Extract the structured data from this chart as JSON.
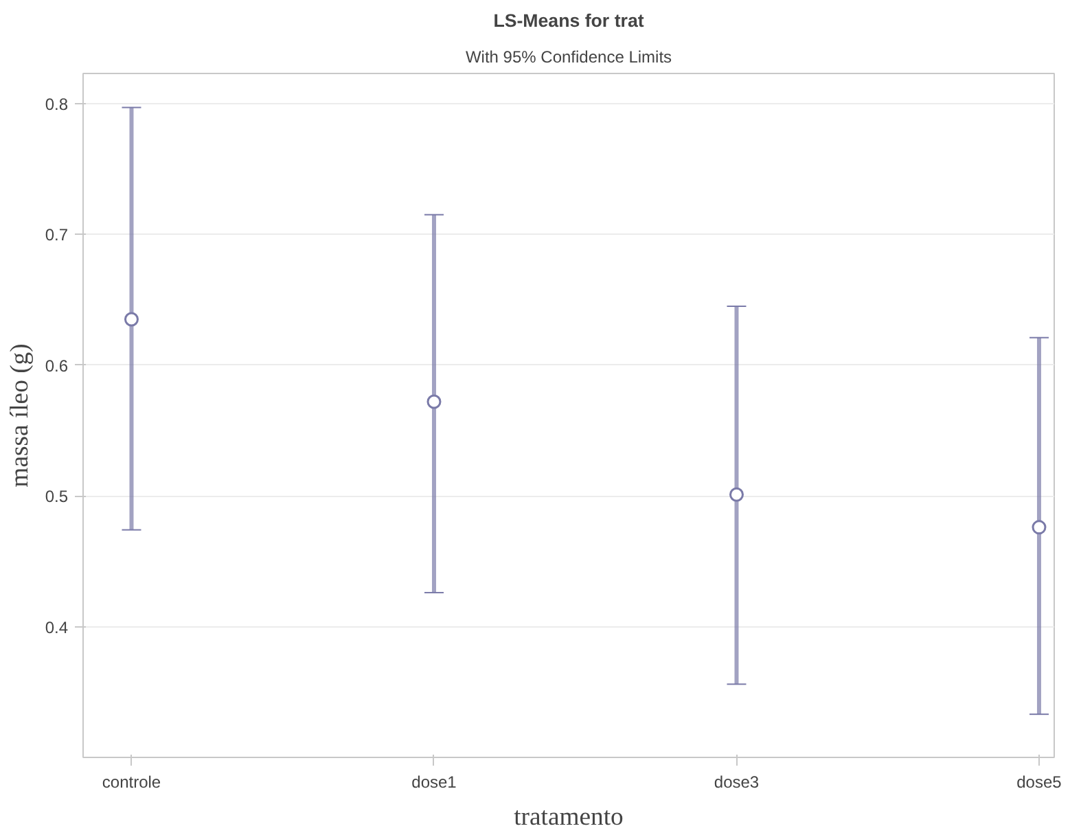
{
  "chart_data": {
    "type": "scatter",
    "title": "LS-Means for trat",
    "subtitle": "With 95% Confidence Limits",
    "xlabel": "tratamento",
    "ylabel": "massa íleo (g)",
    "categories": [
      "controle",
      "dose1",
      "dose3",
      "dose5"
    ],
    "series": [
      {
        "color": "#7a7aa8",
        "values": [
          0.635,
          0.572,
          0.501,
          0.476
        ],
        "errors": [
          [
            0.474,
            0.797
          ],
          [
            0.426,
            0.715
          ],
          [
            0.356,
            0.645
          ],
          [
            0.333,
            0.621
          ]
        ]
      }
    ],
    "ylim": [
      0.3,
      0.823
    ],
    "yticks": [
      0.4,
      0.5,
      0.6,
      0.7,
      0.8
    ],
    "grid": "y",
    "marker": "circle"
  }
}
